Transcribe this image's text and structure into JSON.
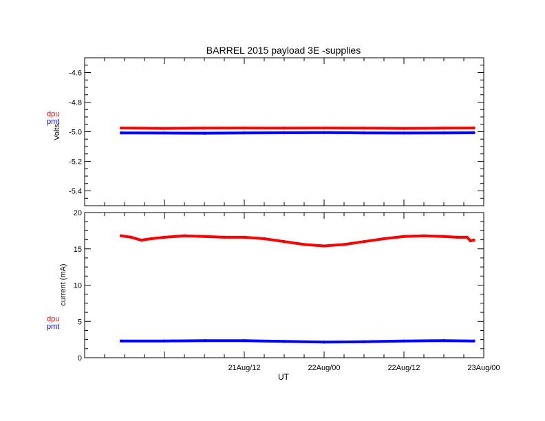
{
  "figure": {
    "title": "BARREL 2015 payload 3E -supplies",
    "xlabel": "UT",
    "x_ticks": [
      "21Aug/12",
      "22Aug/00",
      "22Aug/12",
      "23Aug/00"
    ]
  },
  "colors": {
    "dpu": "#ff0000",
    "pmt": "#0000ff",
    "axes": "#000000"
  },
  "chart_data": [
    {
      "type": "scatter",
      "title": "BARREL 2015 payload 3E -supplies",
      "ylabel": "Volts",
      "xlim": [
        "2015-08-20T12:00",
        "2015-08-23T00:00"
      ],
      "ylim": [
        -5.5,
        -4.5
      ],
      "y_ticks": [
        -4.6,
        -4.8,
        -5.0,
        -5.2,
        -5.4
      ],
      "y_tick_labels": [
        "-4.6",
        "-4.8",
        "-5.0",
        "-5.2",
        "-5.4"
      ],
      "legend": [
        "dpu",
        "pmt"
      ],
      "legend_position": "left",
      "series": [
        {
          "name": "dpu",
          "x": [
            "2015-08-20T17:30",
            "2015-08-21T00:00",
            "2015-08-21T06:00",
            "2015-08-21T12:00",
            "2015-08-21T18:00",
            "2015-08-22T00:00",
            "2015-08-22T06:00",
            "2015-08-22T12:00",
            "2015-08-22T18:00",
            "2015-08-22T22:30"
          ],
          "y": [
            -4.975,
            -4.977,
            -4.976,
            -4.975,
            -4.976,
            -4.975,
            -4.976,
            -4.977,
            -4.976,
            -4.975
          ]
        },
        {
          "name": "pmt",
          "x": [
            "2015-08-20T17:30",
            "2015-08-21T00:00",
            "2015-08-21T06:00",
            "2015-08-21T12:00",
            "2015-08-21T18:00",
            "2015-08-22T00:00",
            "2015-08-22T06:00",
            "2015-08-22T12:00",
            "2015-08-22T18:00",
            "2015-08-22T22:30"
          ],
          "y": [
            -5.008,
            -5.009,
            -5.01,
            -5.008,
            -5.007,
            -5.006,
            -5.008,
            -5.009,
            -5.008,
            -5.007
          ]
        }
      ]
    },
    {
      "type": "scatter",
      "ylabel": "current (mA)",
      "xlabel": "UT",
      "xlim": [
        "2015-08-20T12:00",
        "2015-08-23T00:00"
      ],
      "ylim": [
        0,
        20
      ],
      "y_ticks": [
        0,
        5,
        10,
        15,
        20
      ],
      "y_tick_labels": [
        "0",
        "5",
        "10",
        "15",
        "20"
      ],
      "x_ticks": [
        "21Aug/12",
        "22Aug/00",
        "22Aug/12",
        "23Aug/00"
      ],
      "legend": [
        "dpu",
        "pmt"
      ],
      "legend_position": "left",
      "series": [
        {
          "name": "dpu",
          "x": [
            "2015-08-20T17:30",
            "2015-08-20T19:00",
            "2015-08-20T20:30",
            "2015-08-20T22:00",
            "2015-08-21T00:00",
            "2015-08-21T03:00",
            "2015-08-21T06:00",
            "2015-08-21T09:00",
            "2015-08-21T12:00",
            "2015-08-21T15:00",
            "2015-08-21T18:00",
            "2015-08-21T21:00",
            "2015-08-22T00:00",
            "2015-08-22T03:00",
            "2015-08-22T06:00",
            "2015-08-22T09:00",
            "2015-08-22T12:00",
            "2015-08-22T15:00",
            "2015-08-22T18:00",
            "2015-08-22T20:00",
            "2015-08-22T21:30",
            "2015-08-22T22:00",
            "2015-08-22T22:30"
          ],
          "y": [
            16.8,
            16.6,
            16.2,
            16.4,
            16.6,
            16.8,
            16.7,
            16.6,
            16.6,
            16.4,
            16.0,
            15.6,
            15.4,
            15.6,
            16.0,
            16.4,
            16.7,
            16.8,
            16.7,
            16.6,
            16.6,
            16.1,
            16.2
          ]
        },
        {
          "name": "pmt",
          "x": [
            "2015-08-20T17:30",
            "2015-08-21T00:00",
            "2015-08-21T06:00",
            "2015-08-21T12:00",
            "2015-08-21T18:00",
            "2015-08-22T00:00",
            "2015-08-22T06:00",
            "2015-08-22T12:00",
            "2015-08-22T18:00",
            "2015-08-22T22:30"
          ],
          "y": [
            2.3,
            2.3,
            2.35,
            2.35,
            2.25,
            2.15,
            2.2,
            2.3,
            2.35,
            2.3
          ]
        }
      ]
    }
  ]
}
